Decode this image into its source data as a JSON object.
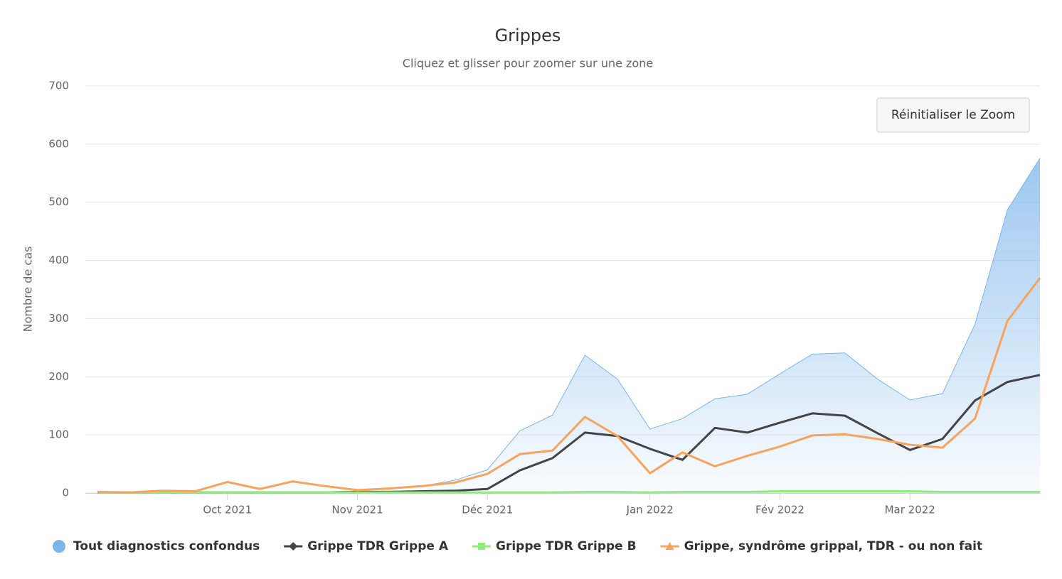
{
  "chart_data": {
    "type": "line",
    "title": "Grippes",
    "subtitle": "Cliquez et glisser pour zoomer sur une zone",
    "button": "Réinitialiser le Zoom",
    "y_label": "Nombre de cas",
    "categories": [
      null,
      null,
      null,
      null,
      "Oct 2021",
      null,
      null,
      null,
      "Nov 2021",
      null,
      null,
      null,
      "Déc 2021",
      null,
      null,
      null,
      null,
      "Jan 2022",
      null,
      null,
      null,
      "Fév 2022",
      null,
      null,
      null,
      "Mar 2022",
      null,
      null,
      null,
      null
    ],
    "ylim": [
      0,
      700
    ],
    "yticks": [
      0,
      100,
      200,
      300,
      400,
      500,
      600,
      700
    ],
    "grid": true,
    "series": [
      {
        "name": "Tout diagnostics confondus",
        "type": "area",
        "marker": "circle",
        "color": "#7cb5ec",
        "values": [
          2,
          1,
          4,
          3,
          19,
          7,
          20,
          12,
          5,
          9,
          12,
          22,
          40,
          107,
          134,
          237,
          196,
          110,
          128,
          162,
          170,
          205,
          239,
          241,
          196,
          160,
          171,
          290,
          487,
          576
        ]
      },
      {
        "name": "Grippe TDR Grippe A",
        "type": "line",
        "marker": "diamond",
        "color": "#434348",
        "values": [
          1,
          1,
          1,
          1,
          1,
          1,
          1,
          1,
          2,
          2,
          3,
          4,
          7,
          39,
          60,
          104,
          98,
          76,
          57,
          112,
          104,
          121,
          137,
          133,
          103,
          74,
          93,
          159,
          191,
          203
        ]
      },
      {
        "name": "Grippe TDR Grippe B",
        "type": "line",
        "marker": "square",
        "color": "#90ed7d",
        "values": [
          1,
          1,
          1,
          1,
          1,
          1,
          1,
          1,
          1,
          1,
          1,
          1,
          1,
          1,
          1,
          2,
          2,
          1,
          2,
          2,
          2,
          3,
          3,
          3,
          3,
          3,
          2,
          2,
          2,
          2
        ]
      },
      {
        "name": "Grippe, syndrôme grippal, TDR - ou non fait",
        "type": "line",
        "marker": "triangle",
        "color": "#f7a35c",
        "values": [
          2,
          1,
          4,
          3,
          19,
          7,
          20,
          12,
          5,
          8,
          12,
          18,
          33,
          67,
          73,
          131,
          98,
          34,
          70,
          46,
          64,
          80,
          99,
          101,
          93,
          83,
          78,
          128,
          296,
          370
        ]
      }
    ]
  }
}
